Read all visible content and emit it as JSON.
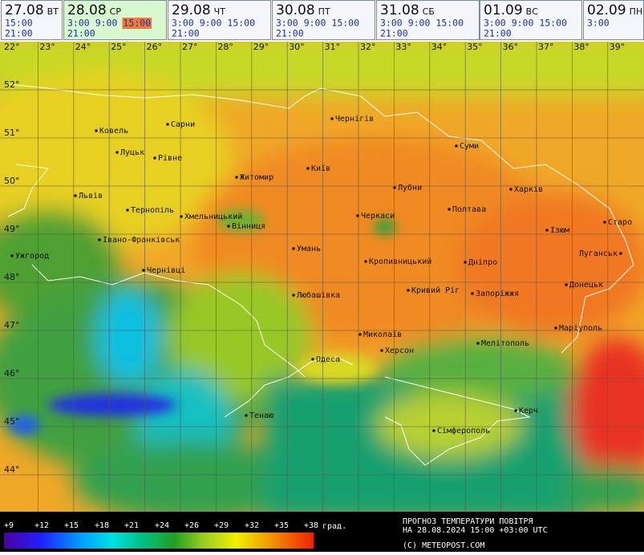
{
  "tabs": [
    {
      "date": "27.08",
      "weekday": "ВТ",
      "times": [
        "15:00",
        "21:00"
      ]
    },
    {
      "date": "28.08",
      "weekday": "СР",
      "times": [
        "3:00",
        "9:00",
        "15:00",
        "21:00"
      ],
      "selected": true,
      "selected_time_index": 2
    },
    {
      "date": "29.08",
      "weekday": "ЧТ",
      "times": [
        "3:00",
        "9:00",
        "15:00",
        "21:00"
      ]
    },
    {
      "date": "30.08",
      "weekday": "ПТ",
      "times": [
        "3:00",
        "9:00",
        "15:00",
        "21:00"
      ]
    },
    {
      "date": "31.08",
      "weekday": "СБ",
      "times": [
        "3:00",
        "9:00",
        "15:00",
        "21:00"
      ]
    },
    {
      "date": "01.09",
      "weekday": "ВС",
      "times": [
        "3:00",
        "9:00",
        "15:00",
        "21:00"
      ]
    },
    {
      "date": "02.09",
      "weekday": "ПН",
      "times": [
        "3:00"
      ]
    }
  ],
  "map": {
    "longitudes": [
      "22°",
      "23°",
      "24°",
      "25°",
      "26°",
      "27°",
      "28°",
      "29°",
      "30°",
      "31°",
      "32°",
      "33°",
      "34°",
      "35°",
      "36°",
      "37°",
      "38°",
      "39°"
    ],
    "latitudes": [
      "52°",
      "51°",
      "50°",
      "49°",
      "48°",
      "47°",
      "46°",
      "45°",
      "44°"
    ],
    "cities": [
      "Ковель",
      "Сарни",
      "Луцьк",
      "Рівне",
      "Чернігів",
      "Суми",
      "Київ",
      "Житомир",
      "Львів",
      "Лубни",
      "Харків",
      "Тернопіль",
      "Хмельницький",
      "Полтава",
      "Черкаси",
      "Старо",
      "Вінниця",
      "Ізюм",
      "Івано-Франківськ",
      "Ужгород",
      "Умань",
      "Луганськ",
      "Кропивницький",
      "Дніпро",
      "Чернівці",
      "Донецьк",
      "Любашівка",
      "Кривий Ріг",
      "Запоріжжя",
      "Маріуполь",
      "Миколаїв",
      "Херсон",
      "Мелітополь",
      "Одеса",
      "Керч",
      "Тенаю",
      "Сімферополь"
    ]
  },
  "legend": {
    "labels": [
      "+9",
      "+12",
      "+15",
      "+18",
      "+21",
      "+24",
      "+26",
      "+29",
      "+32",
      "+35",
      "+38"
    ],
    "unit": "град."
  },
  "footer": {
    "title": "ПРОГНОЗ ТЕМПЕРАТУРИ ПОВІТРЯ",
    "timestamp": "НА 28.08.2024 15:00 +03:00 UTC",
    "copyright": "(C) METEOPOST.COM"
  }
}
